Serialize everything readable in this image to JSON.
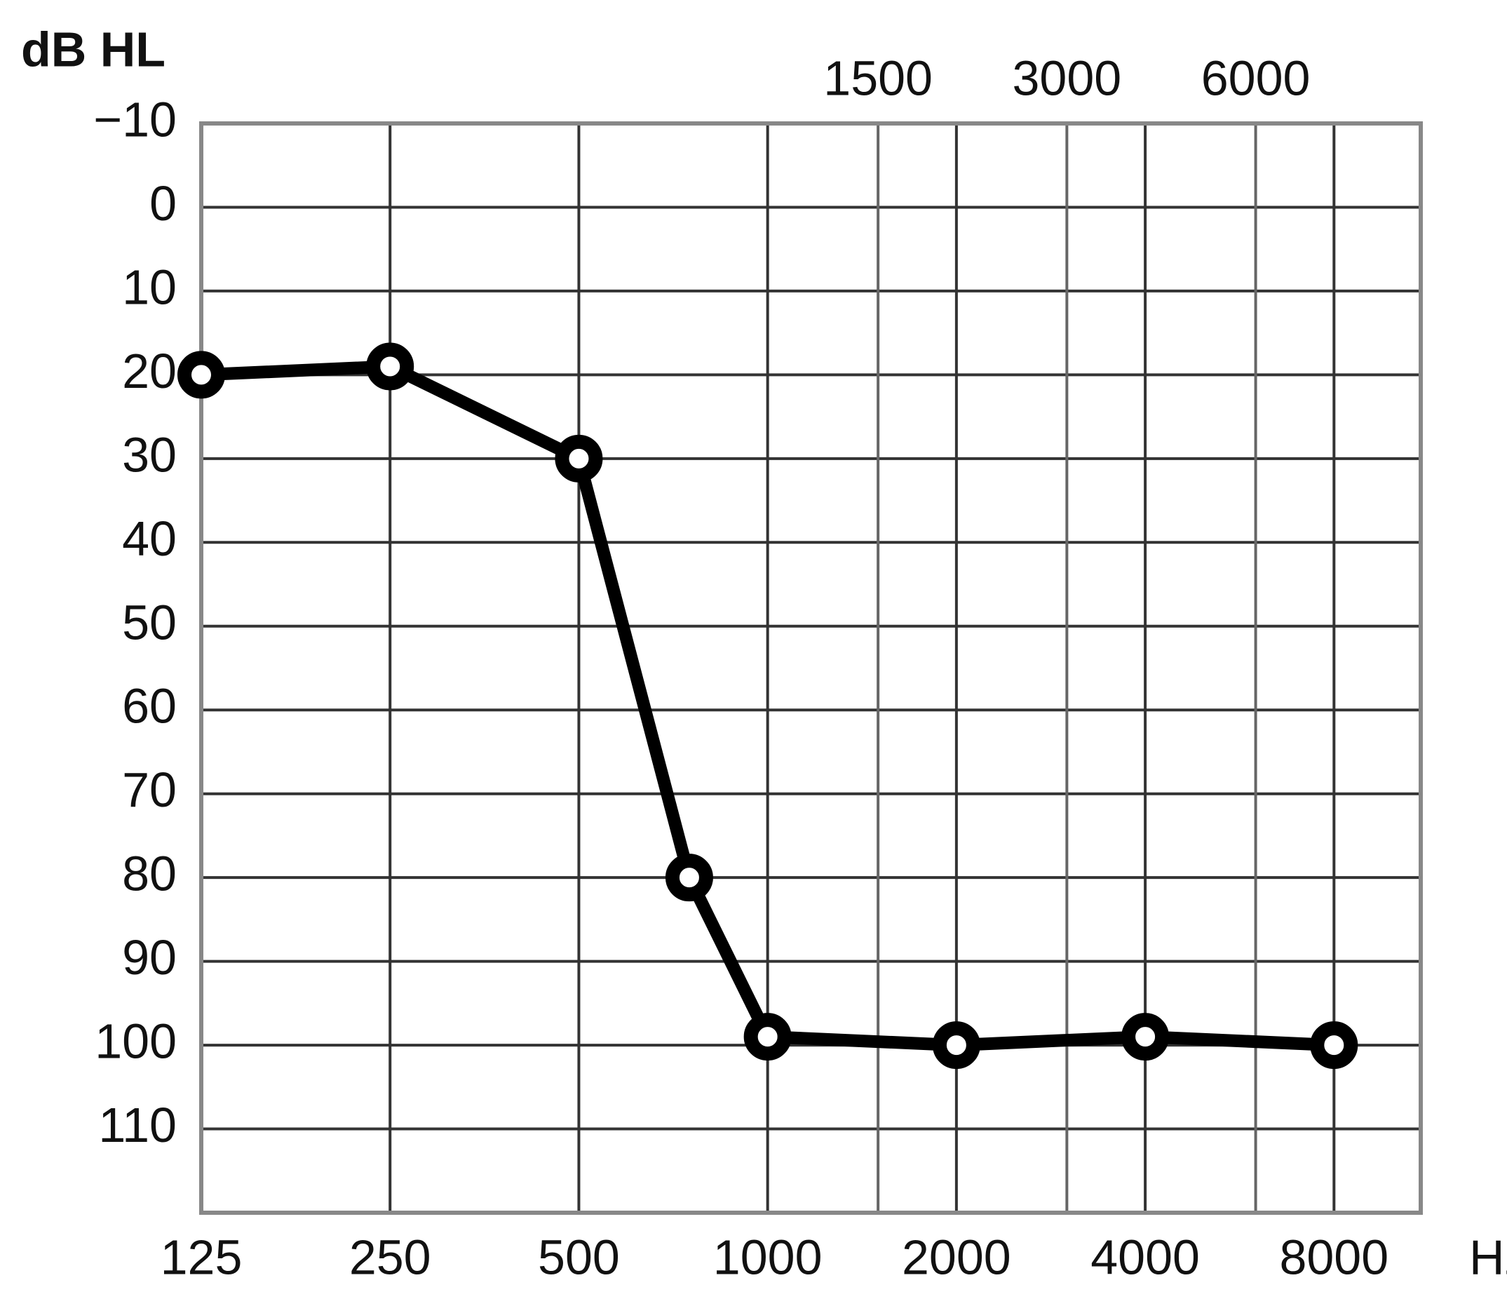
{
  "chart_data": {
    "type": "line",
    "y_label": "dB HL",
    "x_label": "Hz",
    "x": [
      125,
      250,
      500,
      750,
      1000,
      2000,
      4000,
      8000
    ],
    "values": [
      20,
      19,
      30,
      80,
      99,
      100,
      99,
      100
    ],
    "color": "#000000",
    "xlim": [
      125,
      11000
    ],
    "x_log": true,
    "xticks": [
      125,
      250,
      500,
      1000,
      2000,
      4000,
      8000
    ],
    "xticks_top": [
      1500,
      3000,
      6000
    ],
    "ylim": [
      -10,
      120
    ],
    "y_inverted": true,
    "yticks": [
      {
        "value": -10,
        "label": "−10"
      },
      0,
      10,
      20,
      30,
      40,
      50,
      60,
      70,
      80,
      90,
      100,
      110
    ],
    "grid": true
  }
}
